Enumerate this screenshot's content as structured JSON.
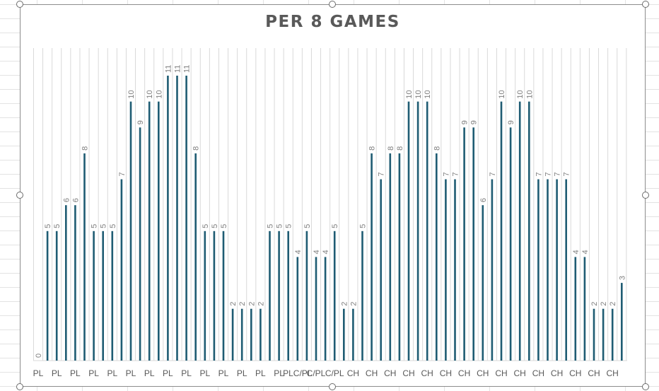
{
  "chart_data": {
    "type": "bar",
    "title": "PER 8 GAMES",
    "xlabel": "",
    "ylabel": "",
    "ylim": [
      0,
      11
    ],
    "grid": "vertical",
    "bar_color": "#1f5c73",
    "gridline_color": "#d9d9d9",
    "values": [
      0,
      5,
      5,
      6,
      6,
      8,
      5,
      5,
      5,
      7,
      10,
      9,
      10,
      10,
      11,
      11,
      11,
      8,
      5,
      5,
      5,
      2,
      2,
      2,
      2,
      5,
      5,
      5,
      4,
      5,
      4,
      4,
      5,
      2,
      2,
      5,
      8,
      7,
      8,
      8,
      10,
      10,
      10,
      8,
      7,
      7,
      9,
      9,
      6,
      7,
      10,
      9,
      10,
      10,
      7,
      7,
      7,
      7,
      4,
      4,
      2,
      2,
      2,
      3
    ],
    "tick_labels": [
      "PL",
      "PL",
      "PL",
      "PL",
      "PL",
      "PL",
      "PL",
      "PL",
      "PL",
      "PL",
      "PL",
      "PL",
      "PL",
      "PL",
      "PLC/PL",
      "C/PL",
      "C/PL",
      "CH",
      "CH",
      "CH",
      "CH",
      "CH",
      "CH",
      "CH",
      "CH",
      "CH",
      "CH",
      "CH",
      "CH",
      "CH",
      "CH",
      "CH"
    ]
  }
}
